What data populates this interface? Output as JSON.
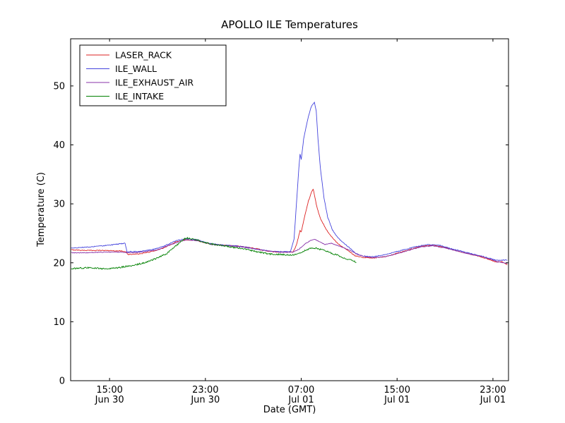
{
  "chart_data": {
    "type": "line",
    "title": "APOLLO ILE Temperatures",
    "xlabel": "Date (GMT)",
    "ylabel": "Temperature (C)",
    "x_unit": "hours since Jun 30 00:00 GMT",
    "xlim": [
      11.75,
      48.3
    ],
    "ylim": [
      0,
      58
    ],
    "grid": false,
    "legend_position": "upper left",
    "yticks": [
      0,
      10,
      20,
      30,
      40,
      50
    ],
    "xticks": [
      {
        "x": 15,
        "line1": "15:00",
        "line2": "Jun 30"
      },
      {
        "x": 23,
        "line1": "23:00",
        "line2": "Jun 30"
      },
      {
        "x": 31,
        "line1": "07:00",
        "line2": "Jul 01"
      },
      {
        "x": 39,
        "line1": "15:00",
        "line2": "Jul 01"
      },
      {
        "x": 47,
        "line1": "23:00",
        "line2": "Jul 01"
      }
    ],
    "series": [
      {
        "name": "LASER_RACK",
        "color": "#dd2222",
        "noise": 0.07,
        "points": [
          [
            11.8,
            22.2
          ],
          [
            13.0,
            22.1
          ],
          [
            14.5,
            22.1
          ],
          [
            16.0,
            22.0
          ],
          [
            16.4,
            21.9
          ],
          [
            16.5,
            21.4
          ],
          [
            17.5,
            21.5
          ],
          [
            18.5,
            21.9
          ],
          [
            19.5,
            22.5
          ],
          [
            20.5,
            23.5
          ],
          [
            21.3,
            23.9
          ],
          [
            22.3,
            23.8
          ],
          [
            23.3,
            23.2
          ],
          [
            24.5,
            23.0
          ],
          [
            26.0,
            22.8
          ],
          [
            27.3,
            22.4
          ],
          [
            27.8,
            22.1
          ],
          [
            28.5,
            21.9
          ],
          [
            29.5,
            21.8
          ],
          [
            30.3,
            21.8
          ],
          [
            30.6,
            23.0
          ],
          [
            30.9,
            25.5
          ],
          [
            31.0,
            25.2
          ],
          [
            31.3,
            28.0
          ],
          [
            31.6,
            30.5
          ],
          [
            31.9,
            32.2
          ],
          [
            32.0,
            32.5
          ],
          [
            32.1,
            31.5
          ],
          [
            32.3,
            29.5
          ],
          [
            32.6,
            27.5
          ],
          [
            33.0,
            26.0
          ],
          [
            33.3,
            25.0
          ],
          [
            33.7,
            24.0
          ],
          [
            34.2,
            23.0
          ],
          [
            34.8,
            22.2
          ],
          [
            35.5,
            21.2
          ],
          [
            36.2,
            20.9
          ],
          [
            37.0,
            20.8
          ],
          [
            38.0,
            21.0
          ],
          [
            39.5,
            21.9
          ],
          [
            41.0,
            22.8
          ],
          [
            42.0,
            23.0
          ],
          [
            43.0,
            22.6
          ],
          [
            44.0,
            22.0
          ],
          [
            45.0,
            21.5
          ],
          [
            46.0,
            21.0
          ],
          [
            46.8,
            20.5
          ],
          [
            47.3,
            20.1
          ],
          [
            47.7,
            20.2
          ],
          [
            48.2,
            19.7
          ]
        ]
      },
      {
        "name": "ILE_WALL",
        "color": "#4444dd",
        "noise": 0.07,
        "points": [
          [
            11.8,
            22.5
          ],
          [
            13.5,
            22.7
          ],
          [
            15.0,
            23.0
          ],
          [
            15.8,
            23.2
          ],
          [
            16.3,
            23.3
          ],
          [
            16.45,
            21.9
          ],
          [
            17.5,
            21.9
          ],
          [
            18.5,
            22.2
          ],
          [
            19.5,
            22.8
          ],
          [
            20.5,
            23.7
          ],
          [
            21.3,
            24.1
          ],
          [
            22.3,
            23.9
          ],
          [
            23.3,
            23.3
          ],
          [
            24.5,
            23.0
          ],
          [
            26.0,
            22.8
          ],
          [
            27.3,
            22.3
          ],
          [
            28.0,
            22.1
          ],
          [
            29.0,
            21.9
          ],
          [
            30.1,
            21.9
          ],
          [
            30.4,
            24.0
          ],
          [
            30.6,
            30.0
          ],
          [
            30.8,
            36.0
          ],
          [
            30.9,
            38.5
          ],
          [
            31.0,
            37.5
          ],
          [
            31.2,
            41.0
          ],
          [
            31.5,
            44.0
          ],
          [
            31.8,
            46.3
          ],
          [
            32.0,
            47.0
          ],
          [
            32.1,
            47.2
          ],
          [
            32.25,
            45.8
          ],
          [
            32.4,
            41.0
          ],
          [
            32.6,
            36.0
          ],
          [
            32.9,
            31.0
          ],
          [
            33.2,
            27.8
          ],
          [
            33.6,
            25.6
          ],
          [
            34.0,
            24.4
          ],
          [
            34.5,
            23.4
          ],
          [
            35.0,
            22.6
          ],
          [
            35.5,
            21.7
          ],
          [
            36.0,
            21.2
          ],
          [
            36.8,
            21.0
          ],
          [
            37.8,
            21.3
          ],
          [
            39.0,
            21.9
          ],
          [
            40.5,
            22.7
          ],
          [
            41.5,
            23.1
          ],
          [
            42.5,
            23.0
          ],
          [
            43.5,
            22.4
          ],
          [
            44.5,
            21.9
          ],
          [
            45.5,
            21.4
          ],
          [
            46.3,
            21.0
          ],
          [
            47.0,
            20.6
          ],
          [
            47.5,
            20.4
          ],
          [
            48.2,
            20.5
          ]
        ]
      },
      {
        "name": "ILE_EXHAUST_AIR",
        "color": "#8833aa",
        "noise": 0.06,
        "points": [
          [
            11.8,
            21.7
          ],
          [
            13.0,
            21.7
          ],
          [
            14.5,
            21.8
          ],
          [
            16.0,
            21.8
          ],
          [
            17.0,
            21.7
          ],
          [
            18.0,
            21.9
          ],
          [
            19.0,
            22.2
          ],
          [
            20.0,
            23.0
          ],
          [
            21.0,
            23.7
          ],
          [
            21.5,
            23.9
          ],
          [
            22.5,
            23.7
          ],
          [
            23.5,
            23.1
          ],
          [
            24.5,
            22.9
          ],
          [
            26.0,
            22.7
          ],
          [
            27.3,
            22.3
          ],
          [
            28.2,
            22.0
          ],
          [
            29.2,
            21.8
          ],
          [
            30.3,
            21.8
          ],
          [
            30.8,
            22.3
          ],
          [
            31.3,
            23.2
          ],
          [
            31.8,
            23.8
          ],
          [
            32.1,
            24.0
          ],
          [
            32.6,
            23.5
          ],
          [
            33.0,
            23.1
          ],
          [
            33.5,
            23.3
          ],
          [
            34.2,
            22.8
          ],
          [
            35.0,
            22.2
          ],
          [
            35.7,
            21.4
          ],
          [
            36.4,
            21.0
          ],
          [
            37.2,
            20.9
          ],
          [
            38.2,
            21.1
          ],
          [
            39.6,
            21.9
          ],
          [
            41.0,
            22.7
          ],
          [
            42.0,
            22.9
          ],
          [
            43.0,
            22.5
          ],
          [
            44.0,
            22.0
          ],
          [
            45.0,
            21.5
          ],
          [
            46.0,
            21.1
          ],
          [
            46.8,
            20.6
          ],
          [
            47.3,
            20.2
          ],
          [
            48.2,
            19.9
          ]
        ]
      },
      {
        "name": "ILE_INTAKE",
        "color": "#008000",
        "noise": 0.13,
        "points": [
          [
            11.8,
            19.0
          ],
          [
            12.5,
            19.1
          ],
          [
            13.5,
            19.2
          ],
          [
            14.3,
            19.0
          ],
          [
            15.0,
            19.0
          ],
          [
            15.8,
            19.2
          ],
          [
            16.5,
            19.4
          ],
          [
            17.3,
            19.7
          ],
          [
            18.2,
            20.2
          ],
          [
            19.0,
            20.8
          ],
          [
            19.8,
            21.6
          ],
          [
            20.5,
            22.8
          ],
          [
            21.0,
            23.7
          ],
          [
            21.4,
            24.2
          ],
          [
            21.8,
            24.1
          ],
          [
            22.3,
            23.9
          ],
          [
            23.0,
            23.4
          ],
          [
            23.8,
            23.1
          ],
          [
            24.8,
            22.8
          ],
          [
            25.8,
            22.5
          ],
          [
            26.8,
            22.1
          ],
          [
            27.5,
            21.8
          ],
          [
            28.3,
            21.5
          ],
          [
            29.2,
            21.4
          ],
          [
            30.0,
            21.3
          ],
          [
            30.6,
            21.4
          ],
          [
            31.2,
            22.0
          ],
          [
            31.7,
            22.4
          ],
          [
            32.2,
            22.5
          ],
          [
            32.7,
            22.2
          ],
          [
            33.3,
            21.8
          ],
          [
            34.0,
            21.3
          ],
          [
            34.6,
            20.8
          ],
          [
            35.2,
            20.4
          ],
          [
            35.6,
            20.1
          ]
        ]
      }
    ]
  }
}
